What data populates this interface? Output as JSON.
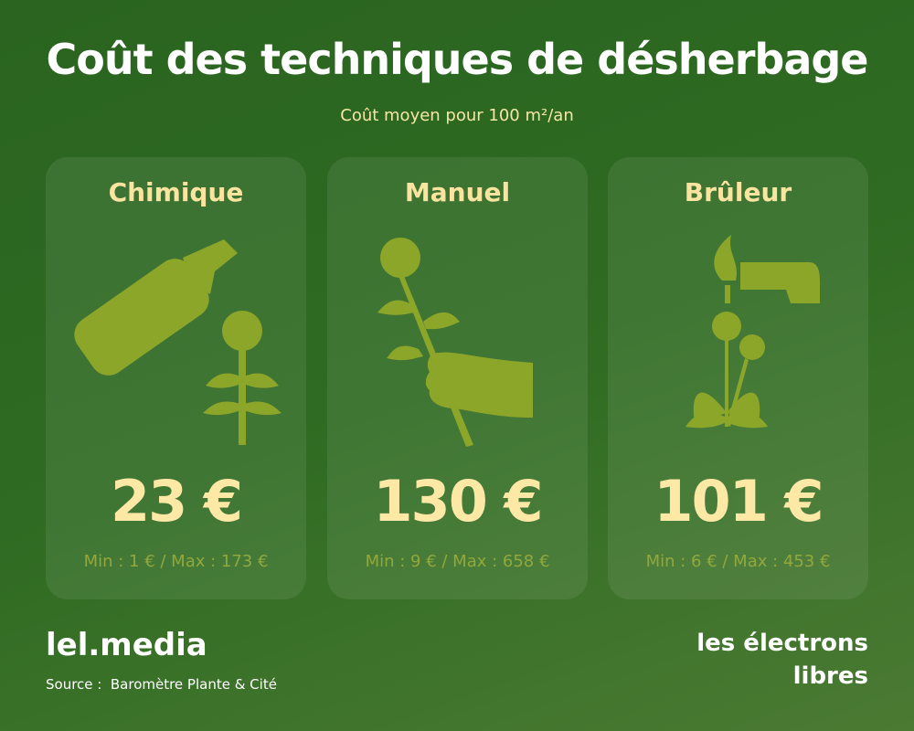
{
  "header": {
    "title": "Coût des techniques de désherbage",
    "subtitle": "Coût moyen pour 100 m²/an"
  },
  "cards": [
    {
      "title": "Chimique",
      "price": "23 €",
      "range": "Min : 1 € / Max : 173 €"
    },
    {
      "title": "Manuel",
      "price": "130 €",
      "range": "Min : 9 € / Max : 658 €"
    },
    {
      "title": "Brûleur",
      "price": "101 €",
      "range": "Min : 6 € / Max : 453 €"
    }
  ],
  "footer": {
    "brand": "lel.media",
    "source": "Source :  Baromètre Plante & Cité",
    "logo": [
      "les électrons",
      "libres"
    ]
  }
}
